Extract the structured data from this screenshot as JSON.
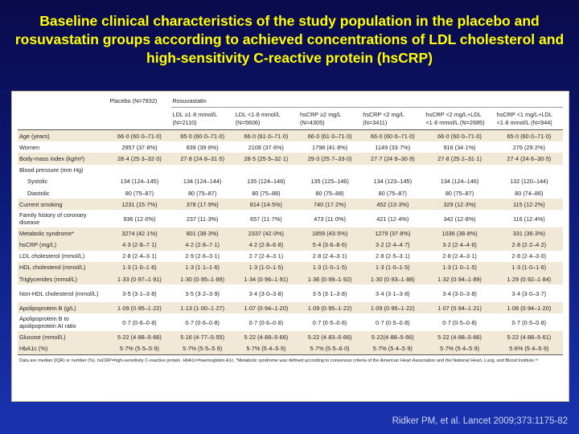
{
  "slide": {
    "title": "Baseline clinical characteristics of the study population in the placebo and rosuvastatin groups according to achieved concentrations of LDL cholesterol and high-sensitivity C-reactive protein (hsCRP)",
    "citation": "Ridker PM, et al. Lancet 2009;373:1175-82"
  },
  "table": {
    "header_top": [
      "",
      "Placebo (N=7832)",
      "Rosuvastatin"
    ],
    "header_sub": [
      "",
      "",
      "LDL ≥1·8 mmol/L (N=2110)",
      "LDL <1·8 mmol/L (N=5606)",
      "hsCRP ≥2 mg/L (N=4305)",
      "hsCRP <2 mg/L (N=3411)",
      "hsCRP <2 mg/L+LDL <1·8 mmol/L (N=2685)",
      "hsCRP <1 mg/L+LDL <1·8 mmol/L (N=944)"
    ],
    "rows": [
      {
        "label": "Age (years)",
        "values": [
          "66·0 (60·0–71·0)",
          "65·0 (60·0–71·0)",
          "66·0 (61·0–71·0)",
          "66·0 (61·0–71·0)",
          "66·0 (60·0–71·0)",
          "66·0 (60·0–71·0)",
          "65·0 (60·0–71·0)"
        ]
      },
      {
        "label": "Women",
        "values": [
          "2957 (37·8%)",
          "839 (39·8%)",
          "2108 (37·6%)",
          "1798 (41·8%)",
          "1149 (33·7%)",
          "916 (34·1%)",
          "276 (29·2%)"
        ]
      },
      {
        "label": "Body-mass index (kg/m²)",
        "values": [
          "28·4 (25·3–32·0)",
          "27·8 (24·8–31·5)",
          "28·5 (25·5–32·1)",
          "29·0 (25·7–33·0)",
          "27·7 (24·9–30·9)",
          "27·8 (25·2–31·1)",
          "27·4 (24·6–30·5)"
        ]
      },
      {
        "label": "Blood pressure (mm Hg)",
        "values": [
          "",
          "",
          "",
          "",
          "",
          "",
          ""
        ]
      },
      {
        "label": "Systolic",
        "values": [
          "134 (124–145)",
          "134 (124–144)",
          "135 (124–146)",
          "135 (125–146)",
          "134 (123–145)",
          "134 (124–146)",
          "132 (120–144)"
        ]
      },
      {
        "label": "Diastolic",
        "values": [
          "80 (75–87)",
          "80 (75–87)",
          "80 (75–88)",
          "80 (75–88)",
          "80 (75–87)",
          "80 (75–87)",
          "80 (74–86)"
        ]
      },
      {
        "label": "Current smoking",
        "values": [
          "1231 (15·7%)",
          "378 (17·9%)",
          "814 (14·5%)",
          "740 (17·2%)",
          "452 (13·3%)",
          "329 (12·3%)",
          "115 (12·2%)"
        ]
      },
      {
        "label": "Family history of coronary disease",
        "values": [
          "936 (12·0%)",
          "237 (11·3%)",
          "657 (11·7%)",
          "473 (11·0%)",
          "421 (12·4%)",
          "342 (12·8%)",
          "116 (12·4%)"
        ]
      },
      {
        "label": "Metabolic syndrome*",
        "values": [
          "3274 (42·1%)",
          "801 (38·3%)",
          "2337 (42·0%)",
          "1859 (43·5%)",
          "1279 (37·8%)",
          "1036 (38·8%)",
          "331 (36·3%)"
        ]
      },
      {
        "label": "hsCRP (mg/L)",
        "values": [
          "4·3 (2·8–7·1)",
          "4·2 (2·8–7·1)",
          "4·2 (2·8–6·8)",
          "5·4 (3·6–8·6)",
          "3·2 (2·4–4·7)",
          "3·2 (2·4–4·6)",
          "2·8 (2·2–4·2)"
        ]
      },
      {
        "label": "LDL cholesterol (mmol/L)",
        "values": [
          "2·8 (2·4–3·1)",
          "2·9 (2·6–3·1)",
          "2·7 (2·4–3·1)",
          "2·8 (2·4–3·1)",
          "2·8 (2·5–3·1)",
          "2·8 (2·4–3·1)",
          "2·8 (2·4–3·0)"
        ]
      },
      {
        "label": "HDL cholesterol (mmol/L)",
        "values": [
          "1·3 (1·0–1·6)",
          "1·3 (1·1–1·6)",
          "1·3 (1·0–1·5)",
          "1·3 (1·0–1·5)",
          "1·3 (1·0–1·5)",
          "1·3 (1·0–1·5)",
          "1·3 (1·0–1·6)"
        ]
      },
      {
        "label": "Triglycerides (mmol/L)",
        "values": [
          "1·33 (0·97–1·91)",
          "1·30 (0·95–1·89)",
          "1·34 (0·96–1·91)",
          "1·36 (0·99–1·92)",
          "1·30 (0·93–1·88)",
          "1·32 (0·94–1·89)",
          "1·29 (0·92–1·84)"
        ]
      },
      {
        "label": "Non-HDL cholesterol (mmol/L)",
        "values": [
          "3·5 (3·1–3·8)",
          "3·5 (3·2–3·9)",
          "3·4 (3·0–3·8)",
          "3·5 (3·1–3·8)",
          "3·4 (3·1–3·8)",
          "3·4 (3·0–3·8)",
          "3·4 (3·0–3·7)"
        ]
      },
      {
        "label": "Apolipoprotein B (g/L)",
        "values": [
          "1·09 (0·95–1·22)",
          "1·13 (1·00–1·27)",
          "1·07 (0·94–1·20)",
          "1·09 (0·95–1·22)",
          "1·09 (0·95–1·22)",
          "1·07 (0·94–1·21)",
          "1·08 (0·94–1·20)"
        ]
      },
      {
        "label": "Apolipoprotein B to apolipoprotein AI ratio",
        "values": [
          "0·7 (0·6–0·8)",
          "0·7 (0·6–0·8)",
          "0·7 (0·6–0·8)",
          "0·7 (0·5–0·8)",
          "0·7 (0·5–0·8)",
          "0·7 (0·5–0·8)",
          "0·7 (0·5–0·8)"
        ]
      },
      {
        "label": "Glucose (mmol/L)",
        "values": [
          "5·22 (4·88–5·66)",
          "5·16 (4·77–5·55)",
          "5·22 (4·88–5·66)",
          "5·22 (4·83–5·66)",
          "5·22(4·88–5·66)",
          "5·22 (4·88–5·66)",
          "5·22 (4·88–5·61)"
        ]
      },
      {
        "label": "HbA1c (%)",
        "values": [
          "5·7% (5·5–5·9)",
          "5·7% (5·5–5·9)",
          "5·7% (5·4–5·9)",
          "5·7% (5·5–6·0)",
          "5·7% (5·4–5·9)",
          "5·7% (5·4–5·9)",
          "5·6% (5·4–5·9)"
        ]
      }
    ],
    "footnote": "Data are median (IQR) or number (%). hsCRP=high-sensitivity C-reactive protein. HbA1c=haemoglobin A1c. *Metabolic syndrome was defined according to consensus criteria of the American Heart Association and the National Heart, Lung, and Blood Institute.¹⁶"
  },
  "colors": {
    "title": "#ffff00",
    "background_top": "#0a0a4a",
    "background_bottom": "#1a33b0",
    "row_shade": "#f2e8d6"
  }
}
